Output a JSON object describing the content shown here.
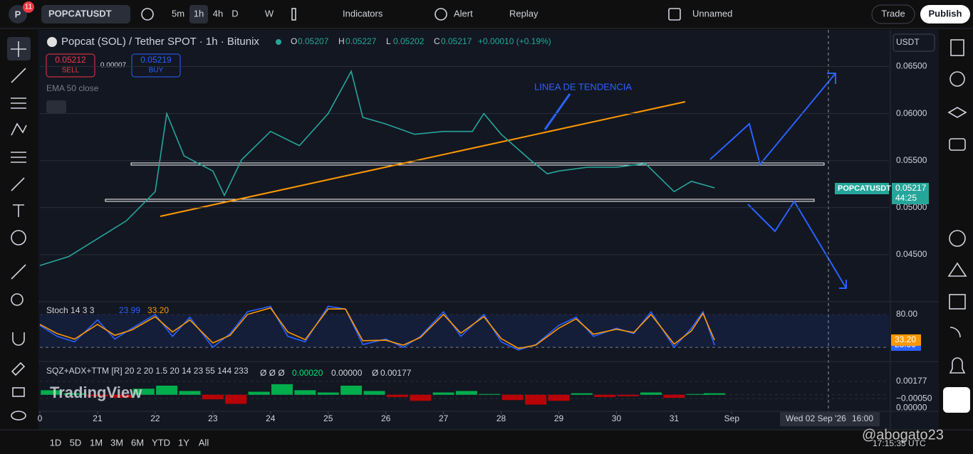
{
  "toolbar": {
    "badge": "11",
    "symbol": "POPCATUSDT",
    "intervals": [
      "5m",
      "1h",
      "4h",
      "D",
      "W"
    ],
    "indicators": "Indicators",
    "alert": "Alert",
    "replay": "Replay",
    "layout": "Unnamed",
    "trade": "Trade",
    "publish": "Publish"
  },
  "header": {
    "title": "Popcat (SOL) / Tether SPOT · 1h · Bitunix",
    "ohlc": [
      [
        "O",
        "0.05207"
      ],
      [
        "H",
        "0.05227"
      ],
      [
        "L",
        "0.05202"
      ],
      [
        "C",
        "0.05217"
      ]
    ],
    "change": "+0.00010 (+0.19%)",
    "sell_price": "0.05212",
    "sell": "SELL",
    "spread": "0.00007",
    "buy_price": "0.05219",
    "buy": "BUY",
    "ema": "EMA 50 close",
    "currency": "USDT"
  },
  "annotation": "LINEA DE TENDENCIA",
  "price_tag": {
    "symbol": "POPCATUSDT",
    "price": "0.05217",
    "countdown": "44:25"
  },
  "chart_data": [
    {
      "type": "line",
      "color": "#26a69a",
      "x": [
        20,
        20.5,
        21,
        21.5,
        22,
        22.2,
        22.5,
        23,
        23.2,
        23.5,
        24,
        24.5,
        25,
        25.4,
        25.6,
        26,
        26.5,
        27,
        27.5,
        27.7,
        28,
        28.5,
        28.8,
        29,
        29.5,
        30,
        30.5,
        31,
        31.3,
        31.7
      ],
      "values": [
        0.04385,
        0.0448,
        0.0467,
        0.0486,
        0.0517,
        0.06,
        0.0555,
        0.0539,
        0.0513,
        0.0551,
        0.0581,
        0.0566,
        0.06,
        0.0645,
        0.0596,
        0.0589,
        0.0578,
        0.0581,
        0.0581,
        0.06,
        0.0578,
        0.0551,
        0.0536,
        0.0539,
        0.0543,
        0.0543,
        0.0547,
        0.0517,
        0.0528,
        0.0521
      ],
      "xlim": [
        20,
        34.8
      ],
      "ylim": [
        0.0403,
        0.0689
      ],
      "yticks": [
        {
          "value": 0.065,
          "label": "0.06500"
        },
        {
          "value": 0.06,
          "label": "0.06000"
        },
        {
          "value": 0.055,
          "label": "0.05500"
        },
        {
          "value": 0.05,
          "label": "0.05000"
        },
        {
          "value": 0.045,
          "label": "0.04500"
        }
      ],
      "xticks": [
        {
          "value": 20,
          "label": "0"
        },
        21,
        22,
        23,
        24,
        25,
        26,
        27,
        28,
        29,
        30,
        31,
        {
          "value": 32,
          "label": "Sep"
        }
      ]
    },
    {
      "type": "line",
      "title": "Stoch 14 3 3",
      "x": [
        20,
        20.3,
        20.6,
        21,
        21.3,
        21.6,
        22,
        22.3,
        22.6,
        23,
        23.3,
        23.6,
        24,
        24.3,
        24.6,
        25,
        25.3,
        25.6,
        26,
        26.3,
        26.6,
        27,
        27.3,
        27.7,
        28,
        28.3,
        28.6,
        29,
        29.3,
        29.6,
        30,
        30.3,
        30.6,
        31,
        31.3,
        31.5,
        31.7
      ],
      "series": [
        {
          "color": "#2962ff",
          "values": [
            60,
            40,
            30,
            70,
            35,
            55,
            80,
            40,
            75,
            20,
            45,
            85,
            95,
            40,
            30,
            95,
            90,
            25,
            35,
            20,
            40,
            85,
            40,
            80,
            30,
            15,
            25,
            60,
            75,
            40,
            55,
            45,
            85,
            20,
            55,
            85,
            23.99
          ]
        },
        {
          "color": "#ff9800",
          "values": [
            62,
            45,
            35,
            62,
            42,
            52,
            76,
            48,
            70,
            28,
            42,
            80,
            92,
            48,
            34,
            90,
            90,
            32,
            33,
            24,
            38,
            80,
            46,
            76,
            36,
            18,
            24,
            55,
            72,
            44,
            53,
            47,
            80,
            26,
            50,
            82,
            33.2
          ]
        }
      ],
      "legend_values": [
        "23.99",
        "33.20"
      ],
      "band": [
        20,
        80
      ],
      "ylim": [
        -2,
        102
      ],
      "yticks": [
        {
          "value": 80,
          "label": "80.00"
        }
      ]
    },
    {
      "type": "bar",
      "title": "SQZ+ADX+TTM [R] 20 2 20 1.5 20 14 23 55 144 233",
      "legend": [
        "Ø Ø Ø",
        "0.00020",
        "0.00000",
        "Ø",
        "0.00177"
      ],
      "x": [
        20.2,
        20.6,
        21,
        21.4,
        21.8,
        22.2,
        22.6,
        23,
        23.4,
        23.8,
        24.2,
        24.6,
        25,
        25.4,
        25.8,
        26.2,
        26.6,
        27,
        27.4,
        27.8,
        28.2,
        28.6,
        29,
        29.4,
        29.8,
        30.2,
        30.6,
        31,
        31.4,
        31.7
      ],
      "values": [
        0.0006,
        0.0002,
        -0.0002,
        -0.0004,
        0.0008,
        0.0012,
        0.0005,
        -0.0006,
        -0.0012,
        0.0004,
        0.0014,
        0.0006,
        0.0003,
        0.0012,
        0.0005,
        -0.0003,
        -0.0008,
        0.0003,
        0.0005,
        0.0001,
        -0.0007,
        -0.0013,
        -0.0008,
        0.0002,
        -0.0003,
        -0.0002,
        0.0003,
        -0.0004,
        0.0001,
        0.0002
      ],
      "ylim": [
        -0.0019,
        0.0042
      ],
      "yticks": [
        {
          "value": 0.00177,
          "label": "0.00177"
        },
        {
          "value": -0.0005,
          "label": "−0.00050"
        },
        {
          "value": 0,
          "label": "0.00000"
        }
      ]
    }
  ],
  "watermark": "TradingView",
  "crosshair": {
    "date": "Wed 02 Sep '26",
    "time": "16:00"
  },
  "bottom": {
    "ranges": [
      "1D",
      "5D",
      "1M",
      "3M",
      "6M",
      "YTD",
      "1Y",
      "All"
    ],
    "clock": "17:15:35 UTC"
  },
  "user": "@abogato23"
}
